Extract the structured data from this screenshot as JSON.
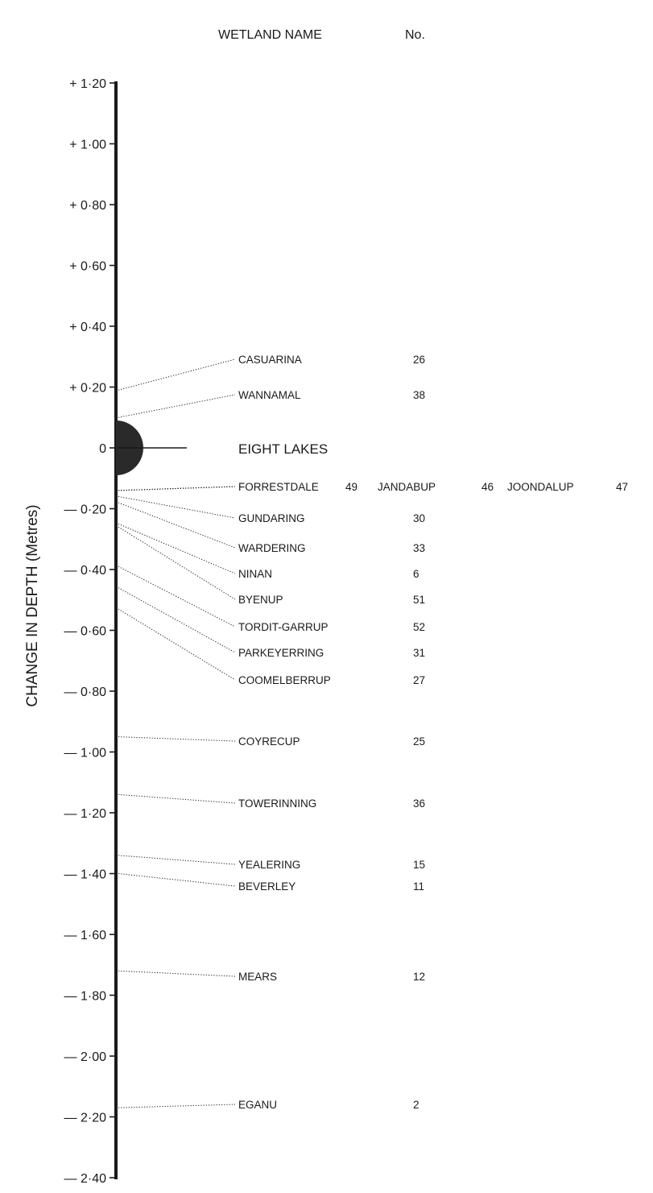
{
  "header": {
    "name_col": "WETLAND NAME",
    "no_col": "No."
  },
  "chart_data": {
    "type": "scatter",
    "ylabel": "CHANGE IN DEPTH (Metres)",
    "ylim": [
      -2.4,
      1.2
    ],
    "yticks": [
      {
        "value": 1.2,
        "label": "+ 1·20"
      },
      {
        "value": 1.0,
        "label": "+ 1·00"
      },
      {
        "value": 0.8,
        "label": "+ 0·80"
      },
      {
        "value": 0.6,
        "label": "+ 0·60"
      },
      {
        "value": 0.4,
        "label": "+ 0·40"
      },
      {
        "value": 0.2,
        "label": "+ 0·20"
      },
      {
        "value": 0.0,
        "label": "0"
      },
      {
        "value": -0.2,
        "label": "— 0·20"
      },
      {
        "value": -0.4,
        "label": "— 0·40"
      },
      {
        "value": -0.6,
        "label": "— 0·60"
      },
      {
        "value": -0.8,
        "label": "— 0·80"
      },
      {
        "value": -1.0,
        "label": "— 1·00"
      },
      {
        "value": -1.2,
        "label": "— 1·20"
      },
      {
        "value": -1.4,
        "label": "— 1·40"
      },
      {
        "value": -1.6,
        "label": "— 1·60"
      },
      {
        "value": -1.8,
        "label": "— 1·80"
      },
      {
        "value": -2.0,
        "label": "— 2·00"
      },
      {
        "value": -2.2,
        "label": "— 2·20"
      },
      {
        "value": -2.4,
        "label": "— 2·40"
      }
    ],
    "reference": {
      "name": "EIGHT LAKES",
      "value": 0.0
    },
    "wetlands": [
      {
        "name": "CASUARINA",
        "no": "26",
        "value": 0.19
      },
      {
        "name": "WANNAMAL",
        "no": "38",
        "value": 0.1
      },
      {
        "name": "FORRESTDALE",
        "no": "49",
        "value": -0.14
      },
      {
        "name": "JANDABUP",
        "no": "46",
        "value": -0.14
      },
      {
        "name": "JOONDALUP",
        "no": "47",
        "value": -0.14
      },
      {
        "name": "GUNDARING",
        "no": "30",
        "value": -0.16
      },
      {
        "name": "WARDERING",
        "no": "33",
        "value": -0.18
      },
      {
        "name": "NINAN",
        "no": "6",
        "value": -0.25
      },
      {
        "name": "BYENUP",
        "no": "51",
        "value": -0.26
      },
      {
        "name": "TORDIT-GARRUP",
        "no": "52",
        "value": -0.39
      },
      {
        "name": "PARKEYERRING",
        "no": "31",
        "value": -0.46
      },
      {
        "name": "COOMELBERRUP",
        "no": "27",
        "value": -0.53
      },
      {
        "name": "COYRECUP",
        "no": "25",
        "value": -0.95
      },
      {
        "name": "TOWERINNING",
        "no": "36",
        "value": -1.14
      },
      {
        "name": "YEALERING",
        "no": "15",
        "value": -1.34
      },
      {
        "name": "BEVERLEY",
        "no": "11",
        "value": -1.4
      },
      {
        "name": "MEARS",
        "no": "12",
        "value": -1.72
      },
      {
        "name": "EGANU",
        "no": "2",
        "value": -2.17
      }
    ]
  }
}
